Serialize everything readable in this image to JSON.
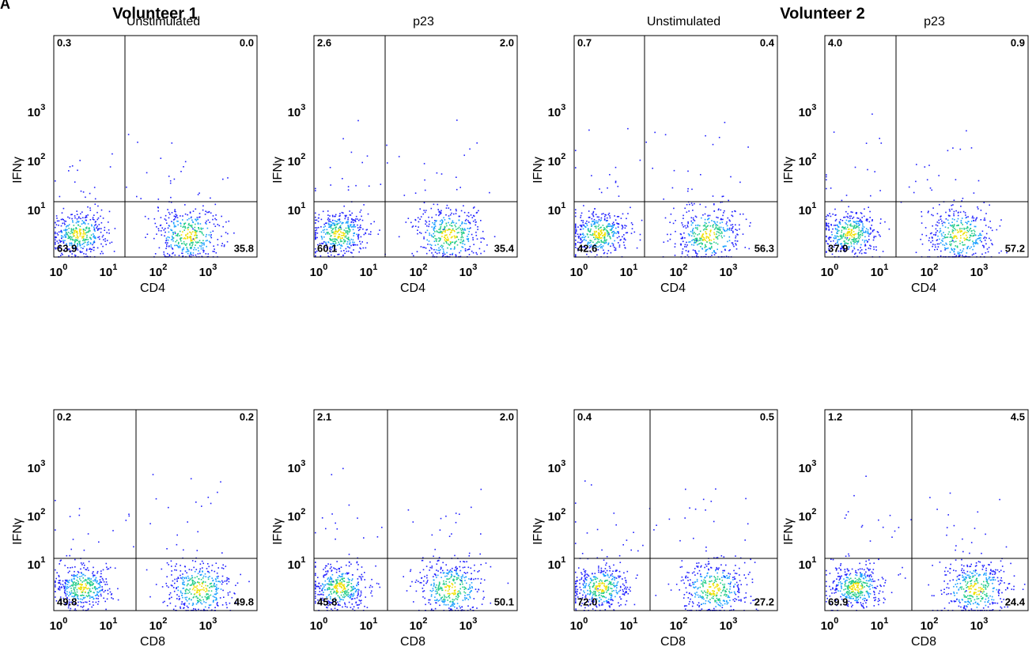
{
  "figure_label": "A",
  "groups": [
    {
      "title": "Volunteer 1"
    },
    {
      "title": "Volunteer 2"
    }
  ],
  "tick_base": "10",
  "tick_exponents": [
    "0",
    "1",
    "2",
    "3"
  ],
  "y_label": "IFNγ",
  "rows": [
    {
      "x_label": "CD4",
      "panels": [
        {
          "title": "Unstimulated",
          "quadrants": [
            "0.3",
            "0.0",
            "63.9",
            "35.8"
          ]
        },
        {
          "title": "p23",
          "quadrants": [
            "2.6",
            "2.0",
            "60.1",
            "35.4"
          ]
        },
        {
          "title": "Unstimulated",
          "quadrants": [
            "0.7",
            "0.4",
            "42.6",
            "56.3"
          ]
        },
        {
          "title": "p23",
          "quadrants": [
            "4.0",
            "0.9",
            "37.9",
            "57.2"
          ]
        }
      ]
    },
    {
      "x_label": "CD8",
      "panels": [
        {
          "quadrants": [
            "0.2",
            "0.2",
            "49.8",
            "49.8"
          ]
        },
        {
          "quadrants": [
            "2.1",
            "2.0",
            "45.8",
            "50.1"
          ]
        },
        {
          "quadrants": [
            "0.4",
            "0.5",
            "72.0",
            "27.2"
          ]
        },
        {
          "quadrants": [
            "1.2",
            "4.5",
            "69.9",
            "24.4"
          ]
        }
      ]
    }
  ]
}
